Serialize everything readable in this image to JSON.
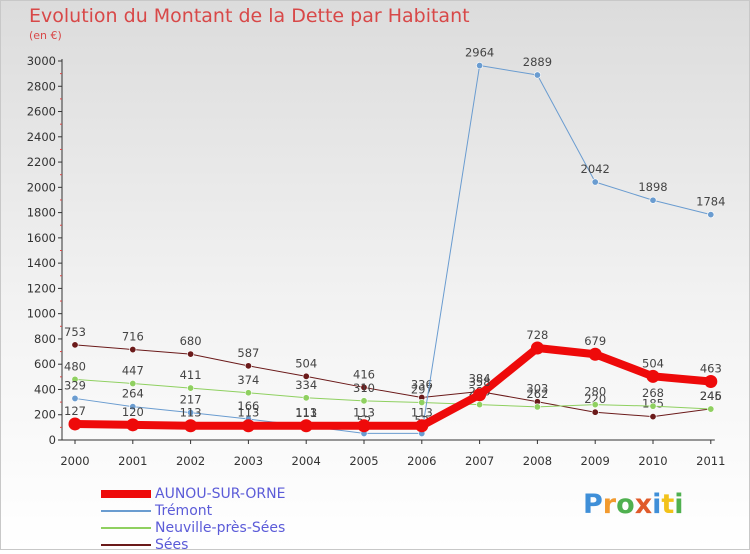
{
  "title": "Evolution du Montant de la Dette par Habitant",
  "unit": "(en €)",
  "logo": {
    "text": "Proxiti",
    "letters": [
      {
        "ch": "P",
        "color": "#3f8fd8"
      },
      {
        "ch": "r",
        "color": "#f29a2e"
      },
      {
        "ch": "o",
        "color": "#4fb04f"
      },
      {
        "ch": "x",
        "color": "#e05a2a"
      },
      {
        "ch": "i",
        "color": "#3f8fd8"
      },
      {
        "ch": "t",
        "color": "#f2c21a"
      },
      {
        "ch": "i",
        "color": "#4fb04f"
      }
    ]
  },
  "chart_data": {
    "type": "line",
    "categories": [
      "2000",
      "2001",
      "2002",
      "2003",
      "2004",
      "2005",
      "2006",
      "2007",
      "2008",
      "2009",
      "2010",
      "2011"
    ],
    "ylim": [
      0,
      3000
    ],
    "yticks": [
      0,
      200,
      400,
      600,
      800,
      1000,
      1200,
      1400,
      1600,
      1800,
      2000,
      2200,
      2400,
      2600,
      2800,
      3000
    ],
    "grid": false,
    "legend_position": "bottom-left",
    "series": [
      {
        "name": "Sées",
        "color": "#6b1a1a",
        "width": 1,
        "values": [
          753,
          716,
          680,
          587,
          504,
          416,
          336,
          384,
          303,
          220,
          185,
          246
        ],
        "labels": [
          "753",
          "716",
          "680",
          "587",
          "504",
          "416",
          "336",
          "384",
          "303",
          "220",
          "185",
          "246"
        ]
      },
      {
        "name": "Neuville-près-Sées",
        "color": "#8fd060",
        "width": 1,
        "values": [
          480,
          447,
          411,
          374,
          334,
          310,
          297,
          280,
          262,
          280,
          268,
          245
        ],
        "labels": [
          "480",
          "447",
          "411",
          "374",
          "334",
          "310",
          "297",
          "280",
          "262",
          "280",
          "268",
          "245"
        ]
      },
      {
        "name": "Trémont",
        "color": "#6a9cd0",
        "width": 1,
        "values": [
          329,
          264,
          217,
          166,
          111,
          52,
          52,
          2964,
          2889,
          2042,
          1898,
          1784
        ],
        "labels": [
          "329",
          "264",
          "217",
          "166",
          "111",
          "52",
          "52",
          "2964",
          "2889",
          "2042",
          "1898",
          "1784"
        ]
      },
      {
        "name": "AUNOU-SUR-ORNE",
        "color": "#ee0a0a",
        "width": 8,
        "values": [
          127,
          120,
          113,
          113,
          113,
          113,
          113,
          358,
          728,
          679,
          504,
          463
        ],
        "labels": [
          "127",
          "120",
          "113",
          "113",
          "113",
          "113",
          "113",
          "358",
          "728",
          "679",
          "504",
          "463"
        ]
      }
    ]
  },
  "legend": [
    {
      "label": "AUNOU-SUR-ORNE",
      "color": "#ee0a0a",
      "width": 8
    },
    {
      "label": "Trémont",
      "color": "#6a9cd0",
      "width": 1
    },
    {
      "label": "Neuville-près-Sées",
      "color": "#8fd060",
      "width": 1
    },
    {
      "label": "Sées",
      "color": "#6b1a1a",
      "width": 1
    }
  ]
}
